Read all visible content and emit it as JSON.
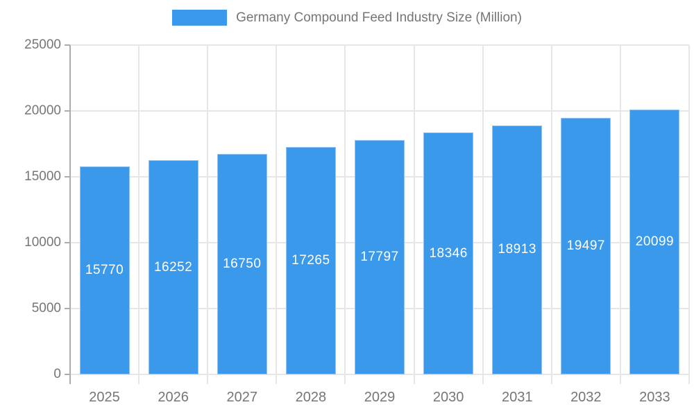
{
  "chart_data": {
    "type": "bar",
    "title": "Germany Compound Feed Industry Size (Million)",
    "categories": [
      "2025",
      "2026",
      "2027",
      "2028",
      "2029",
      "2030",
      "2031",
      "2032",
      "2033"
    ],
    "values": [
      15770,
      16252,
      16750,
      17265,
      17797,
      18346,
      18913,
      19497,
      20099
    ],
    "series_name": "Germany Compound Feed Industry Size (Million)",
    "xlabel": "",
    "ylabel": "",
    "ylim": [
      0,
      25000
    ],
    "yticks": [
      0,
      5000,
      10000,
      15000,
      20000,
      25000
    ],
    "grid": "on",
    "legend_position": "top-center",
    "value_labels": "inside-center"
  },
  "colors": {
    "bar_fill": "#3B99EC",
    "bar_border": "#94C4F1",
    "gridline": "#E6E6E6",
    "axis_line": "#ACACAC",
    "tick_text": "#757575",
    "legend_text": "#757575",
    "bar_label_text": "#FFFFFF",
    "background": "#FFFFFF"
  }
}
